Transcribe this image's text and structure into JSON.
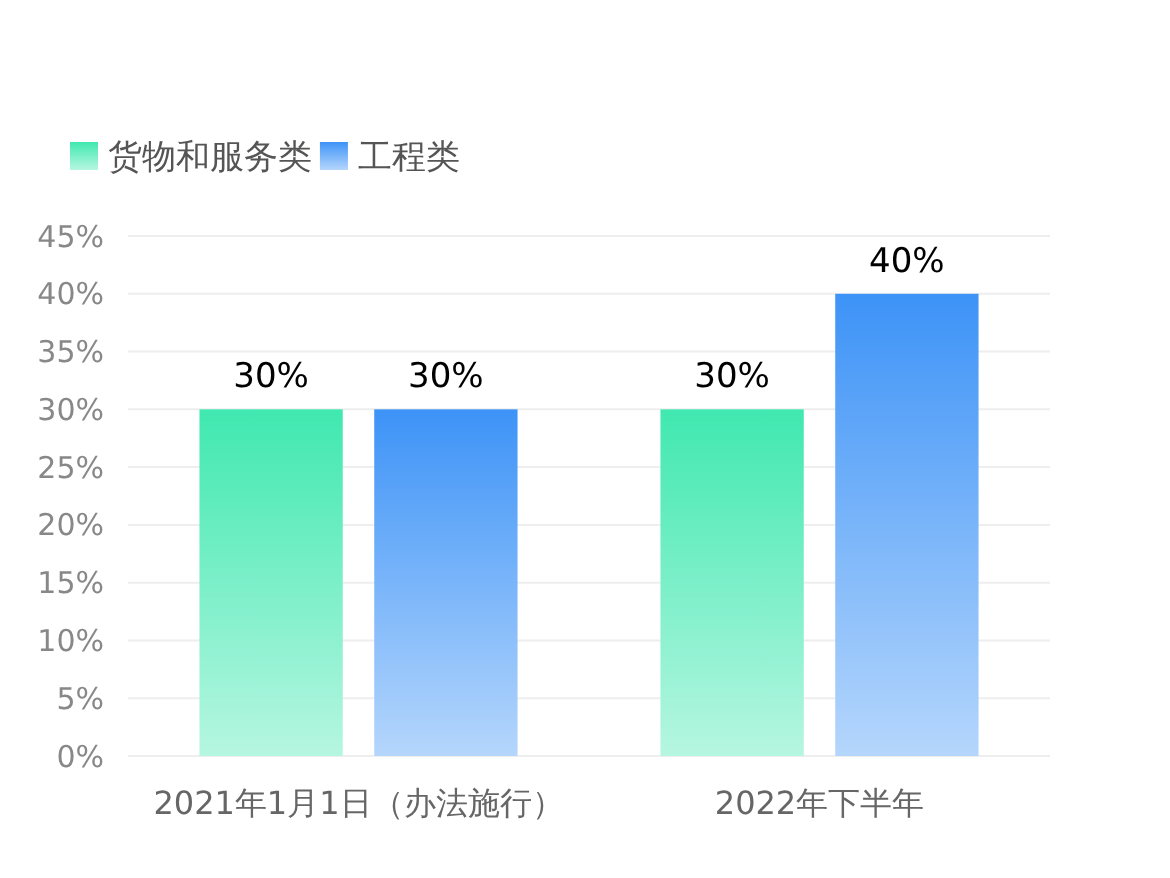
{
  "chart_data": {
    "type": "bar",
    "categories": [
      "2021年1月1日（办法施行）",
      "2022年下半年"
    ],
    "series": [
      {
        "name": "货物和服务类",
        "color": "#40e8b0",
        "values": [
          30,
          30
        ],
        "value_labels": [
          "30%",
          "30%"
        ]
      },
      {
        "name": "工程类",
        "color": "#3d93f7",
        "values": [
          30,
          40
        ],
        "value_labels": [
          "30%",
          "40%"
        ]
      }
    ],
    "ylim": [
      0,
      45
    ],
    "yticks": [
      {
        "value": 0,
        "label": "0%"
      },
      {
        "value": 5,
        "label": "5%"
      },
      {
        "value": 10,
        "label": "10%"
      },
      {
        "value": 15,
        "label": "15%"
      },
      {
        "value": 20,
        "label": "20%"
      },
      {
        "value": 25,
        "label": "25%"
      },
      {
        "value": 30,
        "label": "30%"
      },
      {
        "value": 35,
        "label": "35%"
      },
      {
        "value": 40,
        "label": "40%"
      },
      {
        "value": 45,
        "label": "45%"
      }
    ],
    "grid": "y",
    "legend": "top left"
  }
}
